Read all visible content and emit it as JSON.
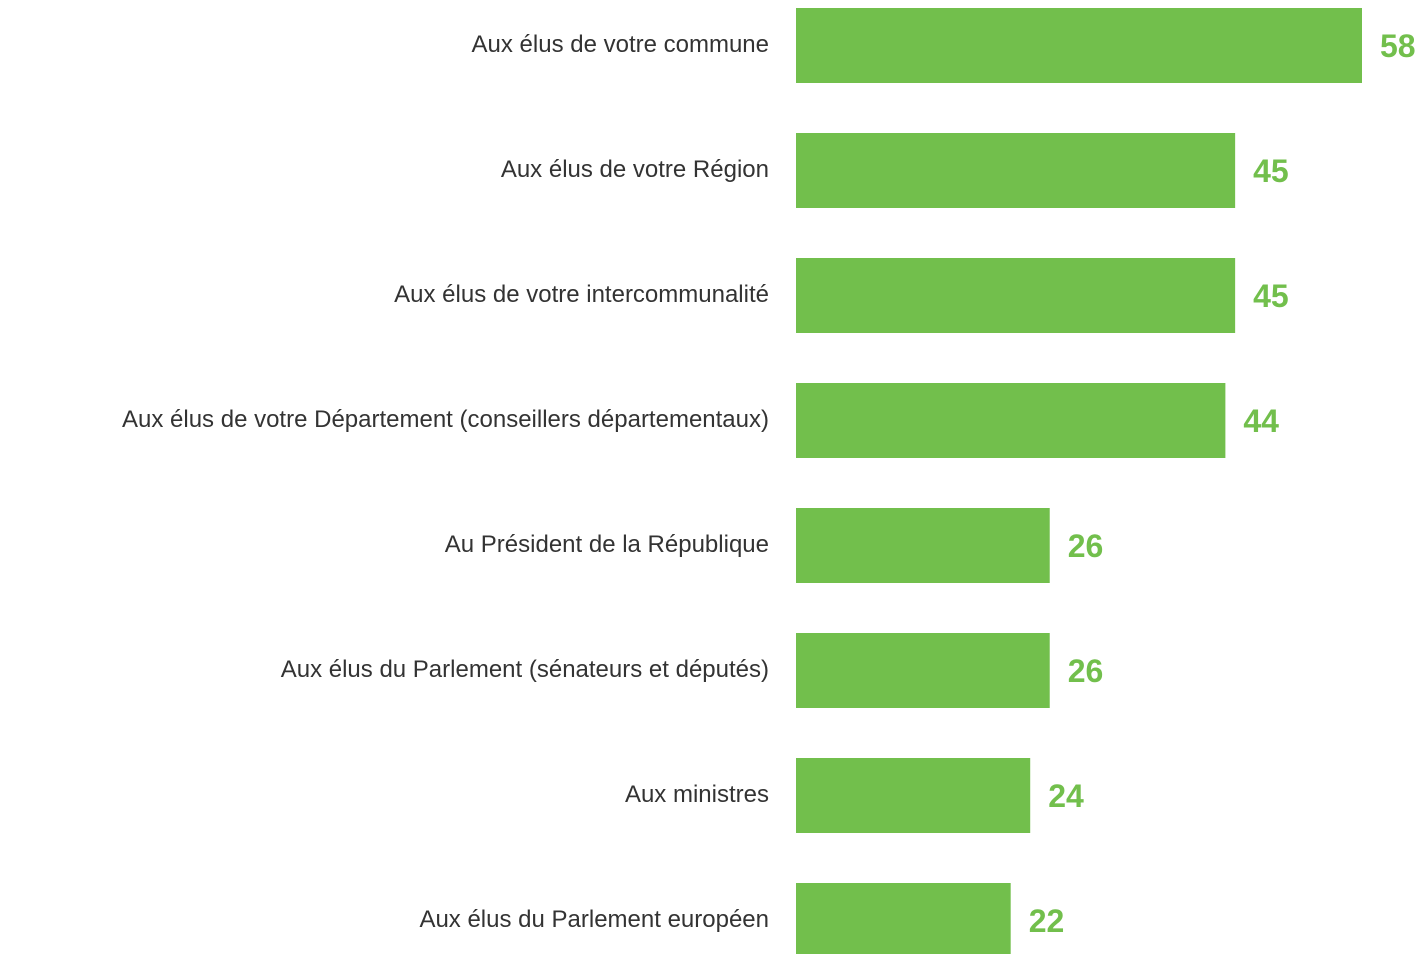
{
  "chart_data": {
    "type": "bar",
    "orientation": "horizontal",
    "categories": [
      "Aux élus de votre commune",
      "Aux élus de votre Région",
      "Aux élus de votre intercommunalité",
      "Aux élus de votre Département (conseillers départementaux)",
      "Au Président de la République",
      "Aux élus du Parlement (sénateurs et députés)",
      "Aux ministres",
      "Aux élus du Parlement européen"
    ],
    "values": [
      58,
      45,
      45,
      44,
      26,
      26,
      24,
      22
    ],
    "color": "#72bf4c"
  }
}
